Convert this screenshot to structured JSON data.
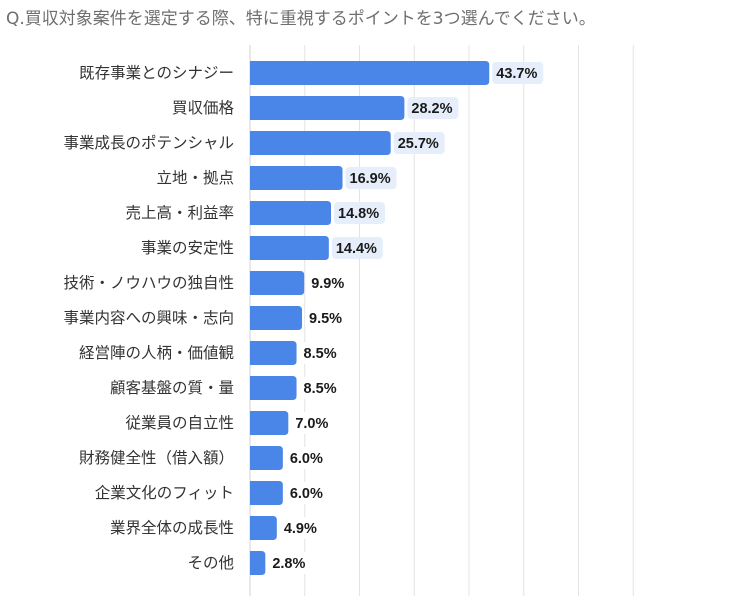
{
  "question": "Q.買収対象案件を選定する際、特に重視するポイントを3つ選んでください。",
  "chart_data": {
    "type": "bar",
    "orientation": "horizontal",
    "categories": [
      "既存事業とのシナジー",
      "買収価格",
      "事業成長のポテンシャル",
      "立地・拠点",
      "売上高・利益率",
      "事業の安定性",
      "技術・ノウハウの独自性",
      "事業内容への興味・志向",
      "経営陣の人柄・価値観",
      "顧客基盤の質・量",
      "従業員の自立性",
      "財務健全性（借入額）",
      "企業文化のフィット",
      "業界全体の成長性",
      "その他"
    ],
    "values": [
      43.7,
      28.2,
      25.7,
      16.9,
      14.8,
      14.4,
      9.9,
      9.5,
      8.5,
      8.5,
      7.0,
      6.0,
      6.0,
      4.9,
      2.8
    ],
    "value_labels": [
      "43.7%",
      "28.2%",
      "25.7%",
      "16.9%",
      "14.8%",
      "14.4%",
      "9.9%",
      "9.5%",
      "8.5%",
      "8.5%",
      "7.0%",
      "6.0%",
      "6.0%",
      "4.9%",
      "2.8%"
    ],
    "unit": "%",
    "xlim": [
      0,
      70
    ],
    "grid": true,
    "bar_color": "#4a86e8",
    "label_bg_color": "#e6eefb"
  }
}
